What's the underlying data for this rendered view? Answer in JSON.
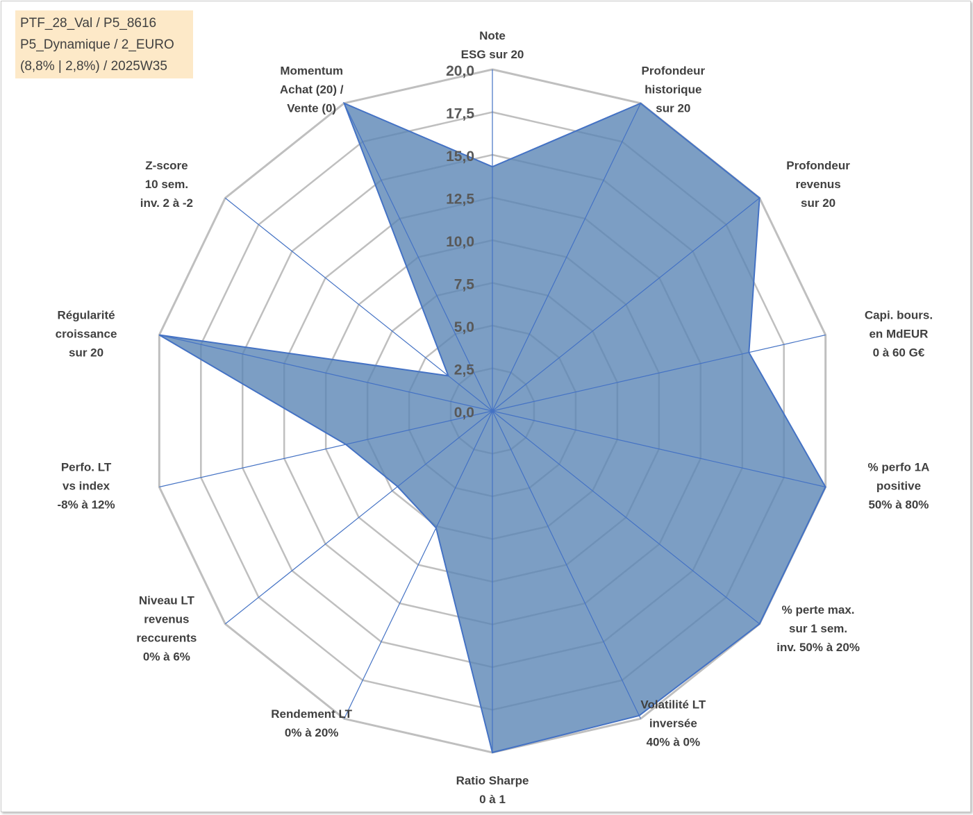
{
  "info": {
    "line1": "PTF_28_Val / P5_8616",
    "line2": "P5_Dynamique / 2_EURO",
    "line3": "(8,8% | 2,8%) / 2025W35"
  },
  "colors": {
    "series_fill": "#5b86b5",
    "series_line": "#4472c4",
    "grid": "#bfbfbf",
    "spoke": "#4472c4"
  },
  "chart_data": {
    "type": "radar",
    "rlim": [
      0,
      20
    ],
    "ticks": [
      "0,0",
      "2,5",
      "5,0",
      "7,5",
      "10,0",
      "12,5",
      "15,0",
      "17,5",
      "20,0"
    ],
    "grid": true,
    "categories": [
      [
        "Note",
        "ESG sur 20"
      ],
      [
        "Profondeur",
        "historique",
        "sur 20"
      ],
      [
        "Profondeur",
        "revenus",
        "sur 20"
      ],
      [
        "Capi. bours.",
        "en MdEUR",
        "0 à 60 G€"
      ],
      [
        "% perfo 1A",
        "positive",
        "50% à 80%"
      ],
      [
        "% perte max.",
        "sur 1 sem.",
        "inv. 50% à 20%"
      ],
      [
        "Volatilité LT",
        "inversée",
        "40% à 0%"
      ],
      [
        "Ratio Sharpe",
        "0 à 1"
      ],
      [
        "Rendement LT",
        "0% à 20%"
      ],
      [
        "Niveau LT",
        "revenus",
        "reccurents",
        "0% à 6%"
      ],
      [
        "Perfo. LT",
        "vs index",
        "-8% à 12%"
      ],
      [
        "Régularité",
        "croissance",
        "sur 20"
      ],
      [
        "Z-score",
        "10 sem.",
        "inv. 2 à -2"
      ],
      [
        "Momentum",
        "Achat (20) /",
        "Vente (0)"
      ]
    ],
    "values": [
      14.3,
      20,
      20,
      15.4,
      20,
      20,
      19.8,
      20,
      7.6,
      7.1,
      8.8,
      20,
      3.3,
      20
    ]
  }
}
